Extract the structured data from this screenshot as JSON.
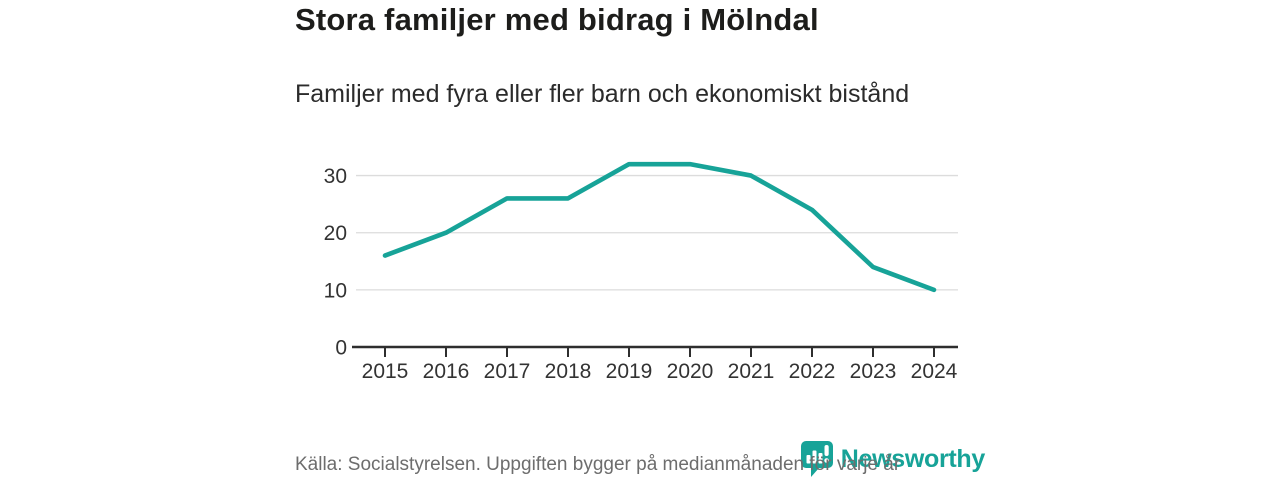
{
  "chart_data": {
    "type": "line",
    "title": "Stora familjer med bidrag i Mölndal",
    "subtitle": "Familjer med fyra eller fler barn och ekonomiskt bistånd",
    "x": [
      "2015",
      "2016",
      "2017",
      "2018",
      "2019",
      "2020",
      "2021",
      "2022",
      "2023",
      "2024"
    ],
    "series": [
      {
        "name": "Familjer med fyra eller fler barn och ekonomiskt bistånd",
        "values": [
          16,
          20,
          26,
          26,
          32,
          32,
          30,
          24,
          14,
          10
        ]
      }
    ],
    "xlabel": "",
    "ylabel": "",
    "ylim": [
      0,
      35
    ],
    "yticks": [
      0,
      10,
      20,
      30
    ],
    "grid": "horizontal",
    "legend": "none",
    "line_color": "#17a398"
  },
  "footer": {
    "source": "Källa: Socialstyrelsen. Uppgiften bygger på medianmånaden för varje år",
    "brand": "Newsworthy"
  },
  "colors": {
    "accent": "#17a398",
    "grid": "#dcdcdc",
    "axis": "#2e2e2e",
    "tick_text": "#333333",
    "title_text": "#1d1d1b",
    "muted_text": "#6d6d6d"
  }
}
